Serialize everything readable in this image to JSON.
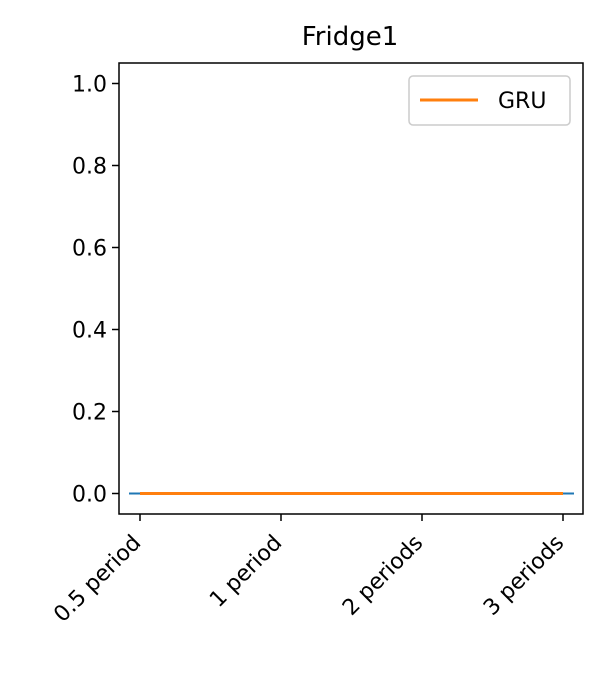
{
  "chart_data": {
    "type": "line",
    "title": "Fridge1",
    "xlabel": "",
    "ylabel": "",
    "categories": [
      "0.5 period",
      "1 period",
      "2 periods",
      "3 periods"
    ],
    "ylim": [
      -0.05,
      1.05
    ],
    "yticks": [
      "0.0",
      "0.2",
      "0.4",
      "0.6",
      "0.8",
      "1.0"
    ],
    "ytick_values": [
      0.0,
      0.2,
      0.4,
      0.6,
      0.8,
      1.0
    ],
    "grid": false,
    "legend_position": "upper-right",
    "series": [
      {
        "name": "",
        "values": [
          0.0,
          0.0,
          0.0,
          0.0
        ],
        "color": "#1f77b4",
        "style": "dashed"
      },
      {
        "name": "GRU",
        "values": [
          0.0,
          0.0,
          0.0,
          0.0
        ],
        "color": "#ff7f0e",
        "style": "solid"
      }
    ]
  }
}
